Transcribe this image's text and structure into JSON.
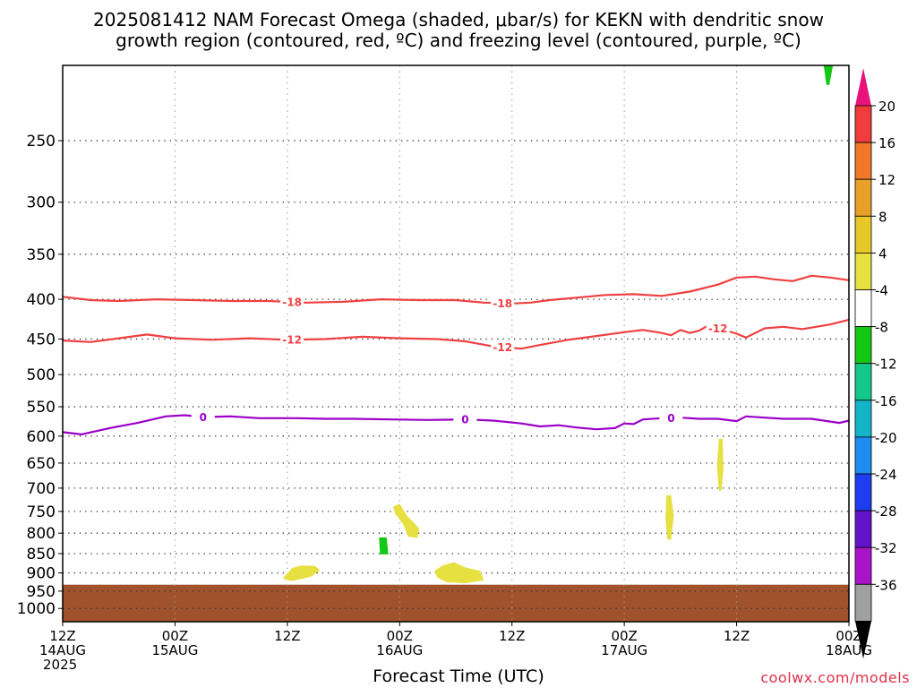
{
  "title": {
    "line1": "2025081412 NAM Forecast Omega (shaded, μbar/s) for KEKN with dendritic snow",
    "line2": "growth region (contoured, red, ºC) and freezing level (contoured, purple, ºC)"
  },
  "watermark": "coolwx.com/models",
  "chart_data": {
    "type": "time-height",
    "xlabel": "Forecast Time (UTC)",
    "ylabel": "",
    "x_range_hours": [
      0,
      84
    ],
    "y_range_hpa": [
      200,
      1040
    ],
    "y_log_scale": true,
    "grid": true,
    "y_ticks": [
      250,
      300,
      350,
      400,
      450,
      500,
      550,
      600,
      650,
      700,
      750,
      800,
      850,
      900,
      950,
      1000
    ],
    "x_ticks": [
      {
        "hour": 0,
        "lines": [
          "12Z",
          "14AUG",
          "2025"
        ]
      },
      {
        "hour": 12,
        "lines": [
          "00Z",
          "15AUG"
        ]
      },
      {
        "hour": 24,
        "lines": [
          "12Z"
        ]
      },
      {
        "hour": 36,
        "lines": [
          "00Z",
          "16AUG"
        ]
      },
      {
        "hour": 48,
        "lines": [
          "12Z"
        ]
      },
      {
        "hour": 60,
        "lines": [
          "00Z",
          "17AUG"
        ]
      },
      {
        "hour": 72,
        "lines": [
          "12Z"
        ]
      },
      {
        "hour": 84,
        "lines": [
          "00Z",
          "18AUG"
        ]
      }
    ],
    "colorbar": {
      "labels": [
        "20",
        "16",
        "12",
        "8",
        "4",
        "-4",
        "-8",
        "-12",
        "-16",
        "-20",
        "-24",
        "-28",
        "-32",
        "-36"
      ],
      "colors": [
        "#f03c3c",
        "#f07828",
        "#e8a028",
        "#e6c828",
        "#e6e040",
        "#ffffff",
        "#16c816",
        "#14c88c",
        "#14b4c8",
        "#1e8cf0",
        "#1e3cf0",
        "#6414c8",
        "#aa14c8",
        "#a0a0a0"
      ],
      "top_color": "#e6147a",
      "bottom_color": "#000000"
    },
    "ground": {
      "color": "#a0522d",
      "surface_hpa": 932
    },
    "contours": [
      {
        "level": "-18",
        "color": "#f04040",
        "label_hours": [
          24.5,
          47
        ],
        "points": [
          [
            0,
            397
          ],
          [
            3,
            401
          ],
          [
            6,
            402
          ],
          [
            10,
            400
          ],
          [
            14,
            401
          ],
          [
            18,
            402
          ],
          [
            22,
            402
          ],
          [
            26,
            404
          ],
          [
            30,
            403
          ],
          [
            34,
            400
          ],
          [
            38,
            401
          ],
          [
            42,
            401
          ],
          [
            45,
            404
          ],
          [
            48,
            405
          ],
          [
            50,
            404
          ],
          [
            52,
            401
          ],
          [
            55,
            398
          ],
          [
            58,
            395
          ],
          [
            61,
            394
          ],
          [
            64,
            396
          ],
          [
            67,
            391
          ],
          [
            70,
            383
          ],
          [
            72,
            375
          ],
          [
            74,
            374
          ],
          [
            76,
            377
          ],
          [
            78,
            379
          ],
          [
            80,
            373
          ],
          [
            82,
            375
          ],
          [
            84,
            378
          ]
        ]
      },
      {
        "level": "-12",
        "color": "#f04040",
        "label_hours": [
          24.5,
          47,
          70
        ],
        "points": [
          [
            0,
            452
          ],
          [
            3,
            454
          ],
          [
            6,
            449
          ],
          [
            9,
            444
          ],
          [
            12,
            449
          ],
          [
            16,
            451
          ],
          [
            20,
            449
          ],
          [
            24,
            451
          ],
          [
            28,
            450
          ],
          [
            32,
            447
          ],
          [
            36,
            449
          ],
          [
            40,
            450
          ],
          [
            43,
            453
          ],
          [
            46,
            460
          ],
          [
            49,
            463
          ],
          [
            51,
            458
          ],
          [
            54,
            451
          ],
          [
            57,
            446
          ],
          [
            60,
            441
          ],
          [
            62,
            438
          ],
          [
            64,
            442
          ],
          [
            65,
            445
          ],
          [
            66,
            438
          ],
          [
            67,
            442
          ],
          [
            68,
            439
          ],
          [
            69,
            432
          ],
          [
            70,
            436
          ],
          [
            72,
            443
          ],
          [
            73,
            448
          ],
          [
            75,
            436
          ],
          [
            77,
            434
          ],
          [
            79,
            437
          ],
          [
            82,
            431
          ],
          [
            84,
            425
          ]
        ]
      },
      {
        "level": "0",
        "color": "#9b00c8",
        "label_hours": [
          15,
          43,
          65
        ],
        "points": [
          [
            0,
            593
          ],
          [
            2,
            597
          ],
          [
            5,
            586
          ],
          [
            8,
            577
          ],
          [
            11,
            566
          ],
          [
            13,
            564
          ],
          [
            15,
            567
          ],
          [
            18,
            566
          ],
          [
            21,
            569
          ],
          [
            25,
            569
          ],
          [
            28,
            570
          ],
          [
            31,
            570
          ],
          [
            35,
            571
          ],
          [
            39,
            572
          ],
          [
            43,
            571
          ],
          [
            46,
            573
          ],
          [
            49,
            578
          ],
          [
            51,
            583
          ],
          [
            53,
            581
          ],
          [
            55,
            585
          ],
          [
            57,
            588
          ],
          [
            59,
            586
          ],
          [
            60,
            578
          ],
          [
            61,
            579
          ],
          [
            62,
            571
          ],
          [
            64,
            569
          ],
          [
            66,
            568
          ],
          [
            68,
            570
          ],
          [
            70,
            570
          ],
          [
            72,
            574
          ],
          [
            73,
            566
          ],
          [
            75,
            568
          ],
          [
            77,
            570
          ],
          [
            80,
            570
          ],
          [
            83,
            577
          ],
          [
            84,
            573
          ]
        ]
      }
    ],
    "omega_features": [
      {
        "color": "#e6e040",
        "value_range": "4 to 8",
        "points": [
          [
            23.5,
            915
          ],
          [
            24.5,
            887
          ],
          [
            25.5,
            880
          ],
          [
            27.0,
            882
          ],
          [
            27.5,
            893
          ],
          [
            26.5,
            910
          ],
          [
            24.5,
            922
          ]
        ]
      },
      {
        "color": "#e6e040",
        "value_range": "4 to 8",
        "points": [
          [
            35.3,
            740
          ],
          [
            36.0,
            733
          ],
          [
            36.8,
            760
          ],
          [
            37.5,
            775
          ],
          [
            38.1,
            790
          ],
          [
            37.9,
            812
          ],
          [
            36.9,
            808
          ],
          [
            36.4,
            780
          ],
          [
            35.5,
            755
          ]
        ]
      },
      {
        "color": "#e6e040",
        "value_range": "4 to 8",
        "points": [
          [
            40.0,
            912
          ],
          [
            39.7,
            895
          ],
          [
            40.6,
            880
          ],
          [
            41.8,
            872
          ],
          [
            43.0,
            885
          ],
          [
            44.6,
            895
          ],
          [
            45.0,
            920
          ],
          [
            43.0,
            928
          ],
          [
            41.0,
            925
          ]
        ]
      },
      {
        "color": "#e6e040",
        "value_range": "4 to 8",
        "points": [
          [
            64.5,
            715
          ],
          [
            65.0,
            715
          ],
          [
            65.3,
            760
          ],
          [
            65.0,
            815
          ],
          [
            64.6,
            815
          ],
          [
            64.4,
            765
          ]
        ]
      },
      {
        "color": "#e6e040",
        "value_range": "4 to 8",
        "points": [
          [
            70.1,
            605
          ],
          [
            70.5,
            605
          ],
          [
            70.6,
            660
          ],
          [
            70.4,
            705
          ],
          [
            70.1,
            705
          ],
          [
            69.9,
            655
          ]
        ]
      },
      {
        "color": "#16c816",
        "value_range": "-4 to -8",
        "points": [
          [
            33.8,
            810
          ],
          [
            34.6,
            810
          ],
          [
            34.8,
            852
          ],
          [
            33.9,
            852
          ]
        ]
      },
      {
        "color": "#16c816",
        "value_range": "-4 to -8",
        "points": [
          [
            81.3,
            200
          ],
          [
            82.3,
            200
          ],
          [
            81.9,
            212
          ],
          [
            81.6,
            212
          ]
        ]
      }
    ]
  }
}
